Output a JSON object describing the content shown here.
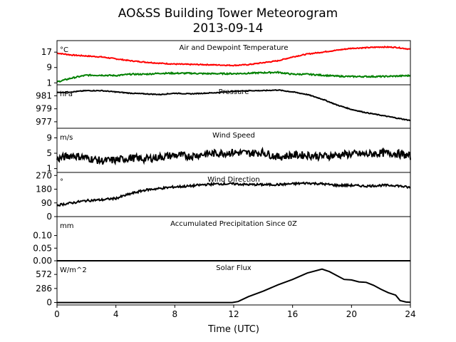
{
  "figure": {
    "title_line1": "AO&SS Building Tower Meteorogram",
    "title_line2": "2013-09-14",
    "xlabel": "Time (UTC)"
  },
  "chart_data": [
    {
      "id": "temp",
      "type": "line",
      "title": "Air and Dewpoint Temperature",
      "unit_label": "°C",
      "ylim": [
        0,
        23
      ],
      "yticks": [
        1,
        9,
        17
      ],
      "ytick_labels": [
        "1",
        "9",
        "17"
      ],
      "series": [
        {
          "color": "#ff0000",
          "noise": 0.25,
          "x": [
            0,
            1,
            2,
            3,
            4,
            5,
            6,
            7,
            8,
            9,
            10,
            11,
            12,
            13,
            14,
            15,
            16,
            17,
            18,
            19,
            20,
            21,
            22,
            23,
            24
          ],
          "y": [
            16.5,
            15.5,
            15,
            14.5,
            13.5,
            12.5,
            11.8,
            11.2,
            10.8,
            10.6,
            10.5,
            10.3,
            10.1,
            10.5,
            11.5,
            12.5,
            14.5,
            16,
            17,
            18,
            19,
            19.3,
            19.7,
            19.5,
            18.5
          ]
        },
        {
          "color": "#008000",
          "noise": 0.35,
          "x": [
            0,
            1,
            2,
            3,
            4,
            5,
            6,
            7,
            8,
            9,
            10,
            11,
            12,
            13,
            14,
            15,
            16,
            17,
            18,
            19,
            20,
            21,
            22,
            23,
            24
          ],
          "y": [
            1.5,
            3.5,
            5,
            5,
            4.8,
            5.5,
            5.5,
            6,
            6,
            6,
            5.8,
            5.8,
            5.8,
            6,
            6.3,
            6.5,
            5.5,
            5.5,
            5,
            4.5,
            4.3,
            4.3,
            4.3,
            4.5,
            4.8
          ]
        }
      ]
    },
    {
      "id": "pressure",
      "type": "line",
      "title": "Pressure",
      "unit_label": "hPa",
      "ylim": [
        976,
        982.7
      ],
      "yticks": [
        977,
        979,
        981
      ],
      "ytick_labels": [
        "977",
        "979",
        "981"
      ],
      "series": [
        {
          "color": "#000000",
          "noise": 0.06,
          "x": [
            0,
            1,
            2,
            3,
            4,
            5,
            6,
            7,
            8,
            9,
            10,
            11,
            12,
            13,
            14,
            15,
            16,
            17,
            18,
            19,
            20,
            21,
            22,
            23,
            24
          ],
          "y": [
            981.5,
            981.6,
            981.8,
            981.8,
            981.6,
            981.4,
            981.3,
            981.2,
            981.4,
            981.3,
            981.4,
            981.5,
            981.7,
            981.8,
            981.8,
            981.9,
            981.6,
            981.2,
            980.5,
            979.6,
            978.9,
            978.4,
            978,
            977.6,
            977.2
          ]
        }
      ]
    },
    {
      "id": "wind_speed",
      "type": "line",
      "title": "Wind Speed",
      "unit_label": "m/s",
      "ylim": [
        0,
        11.5
      ],
      "yticks": [
        1,
        5,
        9
      ],
      "ytick_labels": [
        "1",
        "5",
        "9"
      ],
      "series": [
        {
          "color": "#000000",
          "noise": 1.0,
          "x": [
            0,
            1,
            2,
            3,
            4,
            5,
            6,
            7,
            8,
            9,
            10,
            11,
            12,
            13,
            14,
            15,
            16,
            17,
            18,
            19,
            20,
            21,
            22,
            23,
            24
          ],
          "y": [
            3.5,
            4.5,
            3.8,
            3,
            3.2,
            3.8,
            3.5,
            4,
            4.5,
            4.2,
            4.8,
            5,
            5.2,
            5,
            5.2,
            4,
            4.5,
            4.5,
            4.2,
            4.5,
            4.8,
            4.7,
            5,
            5,
            4.2
          ]
        }
      ]
    },
    {
      "id": "wind_direction",
      "type": "line",
      "title": "Wind Direction",
      "unit_label": "°",
      "ylim": [
        0,
        290
      ],
      "yticks": [
        0,
        90,
        180,
        270
      ],
      "ytick_labels": [
        "0",
        "90",
        "180",
        "270"
      ],
      "series": [
        {
          "color": "#000000",
          "noise": 7,
          "x": [
            0,
            1,
            2,
            3,
            4,
            5,
            6,
            7,
            8,
            9,
            10,
            11,
            12,
            13,
            14,
            15,
            16,
            17,
            18,
            19,
            20,
            21,
            22,
            23,
            24
          ],
          "y": [
            75,
            90,
            105,
            110,
            120,
            150,
            175,
            185,
            195,
            200,
            210,
            215,
            215,
            210,
            210,
            210,
            215,
            220,
            215,
            205,
            205,
            200,
            205,
            205,
            190
          ]
        }
      ]
    },
    {
      "id": "precip",
      "type": "line",
      "title": "Accumulated Precipitation Since 0Z",
      "unit_label": "mm",
      "ylim": [
        0,
        0.175
      ],
      "yticks": [
        0,
        0.05,
        0.1
      ],
      "ytick_labels": [
        "0.00",
        "0.05",
        "0.10"
      ],
      "series": [
        {
          "color": "#000000",
          "noise": 0,
          "x": [
            0,
            24
          ],
          "y": [
            0,
            0
          ]
        }
      ]
    },
    {
      "id": "solar",
      "type": "line",
      "title": "Solar Flux",
      "unit_label": "W/m^2",
      "ylim": [
        -50,
        850
      ],
      "yticks": [
        0,
        286,
        572
      ],
      "ytick_labels": [
        "0",
        "286",
        "572"
      ],
      "series": [
        {
          "color": "#000000",
          "noise": 0,
          "x": [
            0,
            11.9,
            12.3,
            13,
            14,
            15,
            16,
            17,
            18,
            18.5,
            19,
            19.5,
            20,
            20.5,
            21,
            21.5,
            22,
            22.5,
            23,
            23.3,
            23.7,
            24
          ],
          "y": [
            0,
            0,
            20,
            120,
            230,
            360,
            470,
            600,
            680,
            630,
            550,
            470,
            460,
            420,
            410,
            350,
            270,
            200,
            150,
            40,
            10,
            5
          ]
        }
      ]
    }
  ],
  "x_axis": {
    "xlim": [
      0,
      24
    ],
    "ticks": [
      0,
      4,
      8,
      12,
      16,
      20,
      24
    ],
    "tick_labels": [
      "0",
      "4",
      "8",
      "12",
      "16",
      "20",
      "24"
    ]
  }
}
